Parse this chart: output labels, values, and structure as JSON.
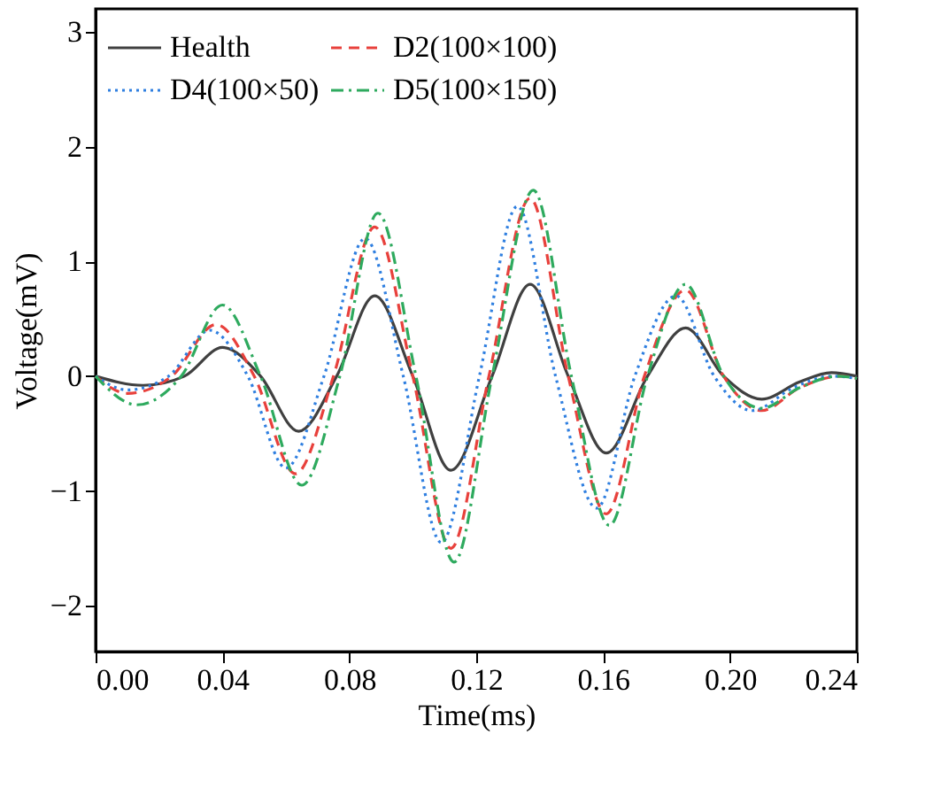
{
  "chart_data": {
    "type": "line",
    "xlabel": "Time(ms)",
    "ylabel": "Voltage(mV)",
    "xlim": [
      0,
      0.24
    ],
    "xticks": [
      {
        "value": 0,
        "label": "0.00"
      },
      {
        "value": 0.04,
        "label": "0.04"
      },
      {
        "value": 0.08,
        "label": "0.08"
      },
      {
        "value": 0.12,
        "label": "0.12"
      },
      {
        "value": 0.16,
        "label": "0.16"
      },
      {
        "value": 0.2,
        "label": "0.20"
      },
      {
        "value": 0.24,
        "label": "0.24"
      }
    ],
    "ylim": [
      -2.4,
      3.2
    ],
    "yticks": [
      -2,
      -1,
      0,
      1,
      2,
      3
    ],
    "grid": false,
    "legend": "top left",
    "marker": "none",
    "series": [
      {
        "name": "Health",
        "color": "#404040",
        "line_style": "solid",
        "x": [
          0,
          0.015,
          0.028,
          0.04,
          0.052,
          0.064,
          0.076,
          0.088,
          0.1,
          0.112,
          0.125,
          0.137,
          0.149,
          0.161,
          0.174,
          0.186,
          0.198,
          0.21,
          0.222,
          0.232,
          0.24
        ],
        "values": [
          0,
          -0.08,
          0,
          0.25,
          0,
          -0.48,
          0,
          0.7,
          0,
          -0.82,
          0,
          0.8,
          0,
          -0.67,
          0,
          0.42,
          0,
          -0.2,
          -0.05,
          0.03,
          0
        ]
      },
      {
        "name": "D2(100×100)",
        "color": "#e8413c",
        "line_style": "dashed",
        "x": [
          0,
          0.01,
          0.024,
          0.038,
          0.05,
          0.063,
          0.075,
          0.088,
          0.1,
          0.112,
          0.124,
          0.137,
          0.149,
          0.161,
          0.173,
          0.186,
          0.198,
          0.21,
          0.222,
          0.235,
          0.24
        ],
        "values": [
          0,
          -0.15,
          0,
          0.45,
          0,
          -0.85,
          0,
          1.3,
          0,
          -1.5,
          0,
          1.55,
          0,
          -1.2,
          0,
          0.75,
          0,
          -0.3,
          -0.1,
          0,
          -0.02
        ]
      },
      {
        "name": "D4(100×50)",
        "color": "#2f7fe0",
        "line_style": "dotted",
        "x": [
          0,
          0.01,
          0.023,
          0.036,
          0.048,
          0.06,
          0.072,
          0.085,
          0.097,
          0.109,
          0.121,
          0.133,
          0.145,
          0.158,
          0.17,
          0.183,
          0.195,
          0.207,
          0.22,
          0.232,
          0.24
        ],
        "values": [
          0,
          -0.12,
          0,
          0.4,
          0,
          -0.8,
          0,
          1.2,
          0,
          -1.45,
          0,
          1.48,
          0,
          -1.15,
          0,
          0.7,
          0,
          -0.3,
          -0.1,
          0,
          -0.02
        ]
      },
      {
        "name": "D5(100×150)",
        "color": "#2eaa5e",
        "line_style": "dashdot",
        "x": [
          0,
          0.013,
          0.027,
          0.04,
          0.052,
          0.065,
          0.077,
          0.089,
          0.101,
          0.113,
          0.125,
          0.138,
          0.15,
          0.162,
          0.174,
          0.186,
          0.198,
          0.21,
          0.222,
          0.234,
          0.24
        ],
        "values": [
          0,
          -0.25,
          0,
          0.62,
          0,
          -0.95,
          0,
          1.42,
          0,
          -1.62,
          0,
          1.62,
          0,
          -1.3,
          0,
          0.8,
          0,
          -0.28,
          -0.1,
          0,
          -0.02
        ]
      }
    ]
  }
}
